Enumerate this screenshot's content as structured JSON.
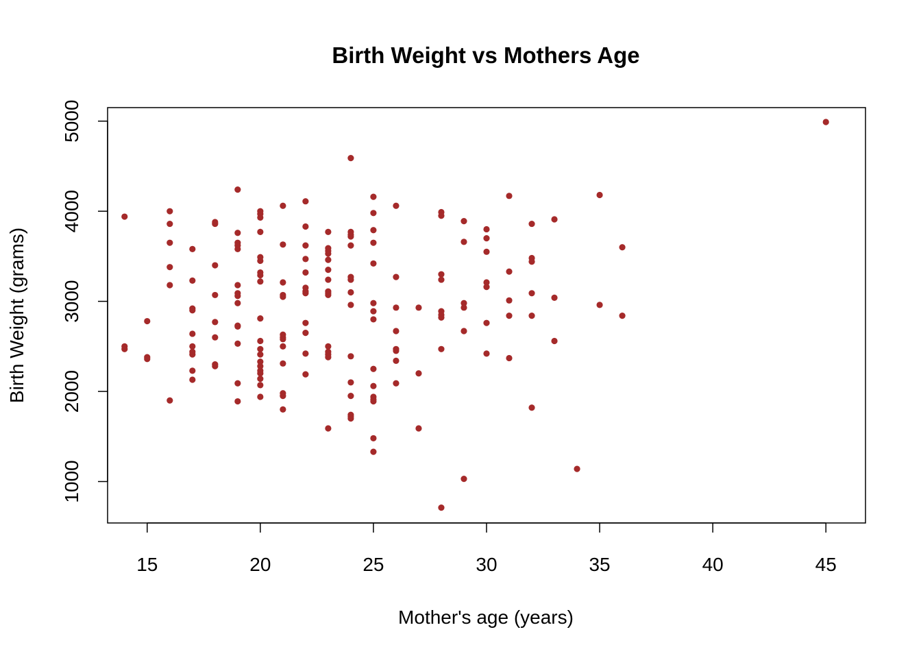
{
  "chart_data": {
    "type": "scatter",
    "title": "Birth Weight vs Mothers Age",
    "xlabel": "Mother's age (years)",
    "ylabel": "Birth Weight (grams)",
    "xlim": [
      13.25,
      46.75
    ],
    "ylim": [
      540,
      5150
    ],
    "xticks": [
      15,
      20,
      25,
      30,
      35,
      40,
      45
    ],
    "yticks": [
      1000,
      2000,
      3000,
      4000,
      5000
    ],
    "grid": false,
    "legend": "none",
    "point_color": "#A52A2A",
    "series": [
      {
        "points": [
          [
            14,
            3940
          ],
          [
            14,
            2500
          ],
          [
            14,
            2470
          ],
          [
            15,
            2780
          ],
          [
            15,
            2380
          ],
          [
            15,
            2360
          ],
          [
            16,
            4000
          ],
          [
            16,
            3860
          ],
          [
            16,
            3650
          ],
          [
            16,
            3380
          ],
          [
            16,
            3180
          ],
          [
            16,
            1900
          ],
          [
            17,
            3580
          ],
          [
            17,
            3230
          ],
          [
            17,
            2920
          ],
          [
            17,
            2900
          ],
          [
            17,
            2640
          ],
          [
            17,
            2500
          ],
          [
            17,
            2440
          ],
          [
            17,
            2410
          ],
          [
            17,
            2230
          ],
          [
            17,
            2130
          ],
          [
            18,
            3880
          ],
          [
            18,
            3860
          ],
          [
            18,
            3400
          ],
          [
            18,
            3070
          ],
          [
            18,
            2770
          ],
          [
            18,
            2600
          ],
          [
            18,
            2300
          ],
          [
            18,
            2280
          ],
          [
            19,
            4240
          ],
          [
            19,
            3760
          ],
          [
            19,
            3650
          ],
          [
            19,
            3620
          ],
          [
            19,
            3580
          ],
          [
            19,
            3180
          ],
          [
            19,
            3090
          ],
          [
            19,
            3060
          ],
          [
            19,
            2980
          ],
          [
            19,
            2730
          ],
          [
            19,
            2720
          ],
          [
            19,
            2530
          ],
          [
            19,
            2090
          ],
          [
            19,
            1890
          ],
          [
            20,
            4000
          ],
          [
            20,
            3970
          ],
          [
            20,
            3930
          ],
          [
            20,
            3770
          ],
          [
            20,
            3490
          ],
          [
            20,
            3450
          ],
          [
            20,
            3320
          ],
          [
            20,
            3290
          ],
          [
            20,
            3220
          ],
          [
            20,
            2810
          ],
          [
            20,
            2560
          ],
          [
            20,
            2470
          ],
          [
            20,
            2410
          ],
          [
            20,
            2330
          ],
          [
            20,
            2280
          ],
          [
            20,
            2230
          ],
          [
            20,
            2200
          ],
          [
            20,
            2140
          ],
          [
            20,
            2070
          ],
          [
            20,
            1940
          ],
          [
            21,
            4060
          ],
          [
            21,
            3630
          ],
          [
            21,
            3210
          ],
          [
            21,
            3070
          ],
          [
            21,
            3050
          ],
          [
            21,
            2630
          ],
          [
            21,
            2600
          ],
          [
            21,
            2580
          ],
          [
            21,
            2500
          ],
          [
            21,
            2310
          ],
          [
            21,
            1980
          ],
          [
            21,
            1950
          ],
          [
            21,
            1800
          ],
          [
            22,
            4110
          ],
          [
            22,
            3830
          ],
          [
            22,
            3620
          ],
          [
            22,
            3470
          ],
          [
            22,
            3320
          ],
          [
            22,
            3150
          ],
          [
            22,
            3110
          ],
          [
            22,
            3090
          ],
          [
            22,
            2760
          ],
          [
            22,
            2650
          ],
          [
            22,
            2420
          ],
          [
            22,
            2190
          ],
          [
            23,
            3770
          ],
          [
            23,
            3590
          ],
          [
            23,
            3560
          ],
          [
            23,
            3530
          ],
          [
            23,
            3460
          ],
          [
            23,
            3350
          ],
          [
            23,
            3240
          ],
          [
            23,
            3110
          ],
          [
            23,
            3090
          ],
          [
            23,
            3070
          ],
          [
            23,
            2500
          ],
          [
            23,
            2440
          ],
          [
            23,
            2410
          ],
          [
            23,
            2380
          ],
          [
            23,
            1590
          ],
          [
            24,
            4590
          ],
          [
            24,
            3770
          ],
          [
            24,
            3740
          ],
          [
            24,
            3720
          ],
          [
            24,
            3620
          ],
          [
            24,
            3270
          ],
          [
            24,
            3240
          ],
          [
            24,
            3100
          ],
          [
            24,
            2960
          ],
          [
            24,
            2390
          ],
          [
            24,
            2100
          ],
          [
            24,
            1950
          ],
          [
            24,
            1740
          ],
          [
            24,
            1720
          ],
          [
            24,
            1700
          ],
          [
            25,
            4160
          ],
          [
            25,
            3980
          ],
          [
            25,
            3790
          ],
          [
            25,
            3650
          ],
          [
            25,
            3420
          ],
          [
            25,
            2980
          ],
          [
            25,
            2890
          ],
          [
            25,
            2800
          ],
          [
            25,
            2250
          ],
          [
            25,
            2060
          ],
          [
            25,
            1940
          ],
          [
            25,
            1910
          ],
          [
            25,
            1890
          ],
          [
            25,
            1480
          ],
          [
            25,
            1330
          ],
          [
            26,
            4060
          ],
          [
            26,
            3270
          ],
          [
            26,
            2930
          ],
          [
            26,
            2670
          ],
          [
            26,
            2470
          ],
          [
            26,
            2450
          ],
          [
            26,
            2340
          ],
          [
            26,
            2090
          ],
          [
            27,
            2930
          ],
          [
            27,
            2200
          ],
          [
            27,
            1590
          ],
          [
            28,
            3990
          ],
          [
            28,
            3950
          ],
          [
            28,
            3300
          ],
          [
            28,
            3240
          ],
          [
            28,
            2890
          ],
          [
            28,
            2850
          ],
          [
            28,
            2820
          ],
          [
            28,
            2470
          ],
          [
            28,
            710
          ],
          [
            29,
            3890
          ],
          [
            29,
            3660
          ],
          [
            29,
            2980
          ],
          [
            29,
            2930
          ],
          [
            29,
            2670
          ],
          [
            29,
            1030
          ],
          [
            30,
            3800
          ],
          [
            30,
            3700
          ],
          [
            30,
            3550
          ],
          [
            30,
            3210
          ],
          [
            30,
            3160
          ],
          [
            30,
            2760
          ],
          [
            30,
            2420
          ],
          [
            31,
            4170
          ],
          [
            31,
            3330
          ],
          [
            31,
            3010
          ],
          [
            31,
            2840
          ],
          [
            31,
            2370
          ],
          [
            32,
            3860
          ],
          [
            32,
            3480
          ],
          [
            32,
            3440
          ],
          [
            32,
            3090
          ],
          [
            32,
            2840
          ],
          [
            32,
            1820
          ],
          [
            33,
            3910
          ],
          [
            33,
            3040
          ],
          [
            33,
            2560
          ],
          [
            34,
            1140
          ],
          [
            35,
            4180
          ],
          [
            35,
            2960
          ],
          [
            36,
            3600
          ],
          [
            36,
            2840
          ],
          [
            45,
            4990
          ]
        ]
      }
    ]
  }
}
